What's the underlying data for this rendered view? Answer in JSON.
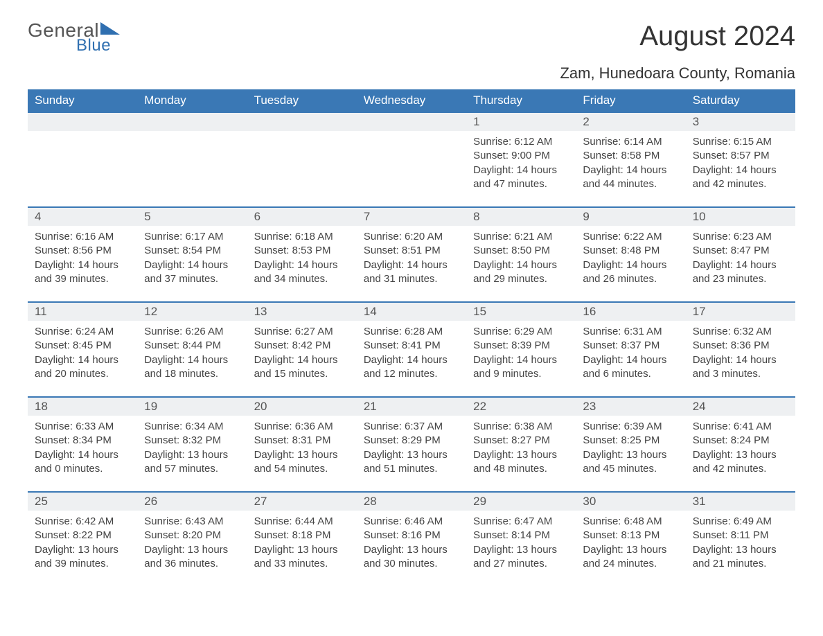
{
  "logo": {
    "text1": "General",
    "text2": "Blue",
    "color_general": "#555555",
    "color_blue": "#2f6fb0",
    "triangle_color": "#2f6fb0"
  },
  "title": "August 2024",
  "location": "Zam, Hunedoara County, Romania",
  "colors": {
    "header_bg": "#3a78b5",
    "header_text": "#ffffff",
    "daynum_bg": "#eef0f2",
    "body_text": "#444444",
    "border": "#3a78b5"
  },
  "weekdays": [
    "Sunday",
    "Monday",
    "Tuesday",
    "Wednesday",
    "Thursday",
    "Friday",
    "Saturday"
  ],
  "leading_blanks": 4,
  "days": [
    {
      "n": 1,
      "sunrise": "6:12 AM",
      "sunset": "9:00 PM",
      "daylight": "14 hours and 47 minutes."
    },
    {
      "n": 2,
      "sunrise": "6:14 AM",
      "sunset": "8:58 PM",
      "daylight": "14 hours and 44 minutes."
    },
    {
      "n": 3,
      "sunrise": "6:15 AM",
      "sunset": "8:57 PM",
      "daylight": "14 hours and 42 minutes."
    },
    {
      "n": 4,
      "sunrise": "6:16 AM",
      "sunset": "8:56 PM",
      "daylight": "14 hours and 39 minutes."
    },
    {
      "n": 5,
      "sunrise": "6:17 AM",
      "sunset": "8:54 PM",
      "daylight": "14 hours and 37 minutes."
    },
    {
      "n": 6,
      "sunrise": "6:18 AM",
      "sunset": "8:53 PM",
      "daylight": "14 hours and 34 minutes."
    },
    {
      "n": 7,
      "sunrise": "6:20 AM",
      "sunset": "8:51 PM",
      "daylight": "14 hours and 31 minutes."
    },
    {
      "n": 8,
      "sunrise": "6:21 AM",
      "sunset": "8:50 PM",
      "daylight": "14 hours and 29 minutes."
    },
    {
      "n": 9,
      "sunrise": "6:22 AM",
      "sunset": "8:48 PM",
      "daylight": "14 hours and 26 minutes."
    },
    {
      "n": 10,
      "sunrise": "6:23 AM",
      "sunset": "8:47 PM",
      "daylight": "14 hours and 23 minutes."
    },
    {
      "n": 11,
      "sunrise": "6:24 AM",
      "sunset": "8:45 PM",
      "daylight": "14 hours and 20 minutes."
    },
    {
      "n": 12,
      "sunrise": "6:26 AM",
      "sunset": "8:44 PM",
      "daylight": "14 hours and 18 minutes."
    },
    {
      "n": 13,
      "sunrise": "6:27 AM",
      "sunset": "8:42 PM",
      "daylight": "14 hours and 15 minutes."
    },
    {
      "n": 14,
      "sunrise": "6:28 AM",
      "sunset": "8:41 PM",
      "daylight": "14 hours and 12 minutes."
    },
    {
      "n": 15,
      "sunrise": "6:29 AM",
      "sunset": "8:39 PM",
      "daylight": "14 hours and 9 minutes."
    },
    {
      "n": 16,
      "sunrise": "6:31 AM",
      "sunset": "8:37 PM",
      "daylight": "14 hours and 6 minutes."
    },
    {
      "n": 17,
      "sunrise": "6:32 AM",
      "sunset": "8:36 PM",
      "daylight": "14 hours and 3 minutes."
    },
    {
      "n": 18,
      "sunrise": "6:33 AM",
      "sunset": "8:34 PM",
      "daylight": "14 hours and 0 minutes."
    },
    {
      "n": 19,
      "sunrise": "6:34 AM",
      "sunset": "8:32 PM",
      "daylight": "13 hours and 57 minutes."
    },
    {
      "n": 20,
      "sunrise": "6:36 AM",
      "sunset": "8:31 PM",
      "daylight": "13 hours and 54 minutes."
    },
    {
      "n": 21,
      "sunrise": "6:37 AM",
      "sunset": "8:29 PM",
      "daylight": "13 hours and 51 minutes."
    },
    {
      "n": 22,
      "sunrise": "6:38 AM",
      "sunset": "8:27 PM",
      "daylight": "13 hours and 48 minutes."
    },
    {
      "n": 23,
      "sunrise": "6:39 AM",
      "sunset": "8:25 PM",
      "daylight": "13 hours and 45 minutes."
    },
    {
      "n": 24,
      "sunrise": "6:41 AM",
      "sunset": "8:24 PM",
      "daylight": "13 hours and 42 minutes."
    },
    {
      "n": 25,
      "sunrise": "6:42 AM",
      "sunset": "8:22 PM",
      "daylight": "13 hours and 39 minutes."
    },
    {
      "n": 26,
      "sunrise": "6:43 AM",
      "sunset": "8:20 PM",
      "daylight": "13 hours and 36 minutes."
    },
    {
      "n": 27,
      "sunrise": "6:44 AM",
      "sunset": "8:18 PM",
      "daylight": "13 hours and 33 minutes."
    },
    {
      "n": 28,
      "sunrise": "6:46 AM",
      "sunset": "8:16 PM",
      "daylight": "13 hours and 30 minutes."
    },
    {
      "n": 29,
      "sunrise": "6:47 AM",
      "sunset": "8:14 PM",
      "daylight": "13 hours and 27 minutes."
    },
    {
      "n": 30,
      "sunrise": "6:48 AM",
      "sunset": "8:13 PM",
      "daylight": "13 hours and 24 minutes."
    },
    {
      "n": 31,
      "sunrise": "6:49 AM",
      "sunset": "8:11 PM",
      "daylight": "13 hours and 21 minutes."
    }
  ],
  "labels": {
    "sunrise": "Sunrise:",
    "sunset": "Sunset:",
    "daylight": "Daylight:"
  }
}
